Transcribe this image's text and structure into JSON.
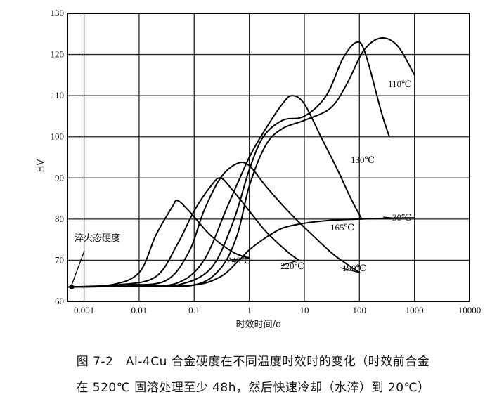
{
  "chart_data": {
    "type": "line",
    "title": "",
    "xlabel": "时效时间/d",
    "ylabel": "HV",
    "xscale": "log",
    "xlim": [
      0.0005,
      10000
    ],
    "ylim": [
      60,
      130
    ],
    "grid": true,
    "x_ticks": [
      {
        "value": 0.001,
        "label": "0.001"
      },
      {
        "value": 0.01,
        "label": "0.01"
      },
      {
        "value": 0.1,
        "label": "0.1"
      },
      {
        "value": 1,
        "label": "1"
      },
      {
        "value": 10,
        "label": "10"
      },
      {
        "value": 100,
        "label": "100"
      },
      {
        "value": 1000,
        "label": "1000"
      },
      {
        "value": 10000,
        "label": "10000"
      }
    ],
    "y_ticks": [
      {
        "value": 60,
        "label": "60"
      },
      {
        "value": 70,
        "label": "70"
      },
      {
        "value": 80,
        "label": "80"
      },
      {
        "value": 90,
        "label": "90"
      },
      {
        "value": 100,
        "label": "100"
      },
      {
        "value": 110,
        "label": "110"
      },
      {
        "value": 120,
        "label": "120"
      },
      {
        "value": 130,
        "label": "130"
      }
    ],
    "quench_point": {
      "x": 0.0005,
      "y": 63.5,
      "label": "淬火态硬度"
    },
    "series": [
      {
        "name": "30℃",
        "points": [
          [
            0.0005,
            63.5
          ],
          [
            0.01,
            63.7
          ],
          [
            0.1,
            64
          ],
          [
            0.3,
            66
          ],
          [
            0.6,
            69.5
          ],
          [
            1,
            72.5
          ],
          [
            2,
            75.5
          ],
          [
            4,
            77.8
          ],
          [
            10,
            79
          ],
          [
            30,
            79.7
          ],
          [
            100,
            80
          ],
          [
            300,
            80.2
          ],
          [
            1000,
            80.3
          ]
        ]
      },
      {
        "name": "110℃",
        "points": [
          [
            0.0005,
            63.5
          ],
          [
            0.01,
            63.7
          ],
          [
            0.1,
            64
          ],
          [
            0.3,
            68
          ],
          [
            0.6,
            76
          ],
          [
            1,
            88
          ],
          [
            2,
            98
          ],
          [
            4,
            102
          ],
          [
            10,
            104
          ],
          [
            30,
            107
          ],
          [
            60,
            113
          ],
          [
            120,
            121
          ],
          [
            250,
            124
          ],
          [
            500,
            122
          ],
          [
            1000,
            115
          ]
        ]
      },
      {
        "name": "130℃",
        "points": [
          [
            0.0005,
            63.5
          ],
          [
            0.01,
            63.7
          ],
          [
            0.05,
            64
          ],
          [
            0.2,
            68
          ],
          [
            0.5,
            79
          ],
          [
            1,
            92
          ],
          [
            1.8,
            100
          ],
          [
            4,
            104
          ],
          [
            10,
            105
          ],
          [
            25,
            110
          ],
          [
            50,
            119
          ],
          [
            90,
            123
          ],
          [
            130,
            120
          ],
          [
            250,
            106
          ],
          [
            350,
            100
          ]
        ]
      },
      {
        "name": "165℃",
        "points": [
          [
            0.0005,
            63.5
          ],
          [
            0.01,
            63.8
          ],
          [
            0.05,
            64.5
          ],
          [
            0.15,
            70
          ],
          [
            0.4,
            83
          ],
          [
            1,
            95
          ],
          [
            2,
            102
          ],
          [
            4,
            108
          ],
          [
            6,
            110
          ],
          [
            10,
            108
          ],
          [
            20,
            100
          ],
          [
            40,
            92
          ],
          [
            70,
            85
          ],
          [
            110,
            80
          ]
        ]
      },
      {
        "name": "190℃",
        "points": [
          [
            0.0005,
            63.5
          ],
          [
            0.005,
            64
          ],
          [
            0.03,
            65
          ],
          [
            0.08,
            72
          ],
          [
            0.15,
            82
          ],
          [
            0.3,
            90
          ],
          [
            0.6,
            93.5
          ],
          [
            1,
            93
          ],
          [
            2,
            88
          ],
          [
            5,
            82
          ],
          [
            10,
            78
          ],
          [
            30,
            72
          ],
          [
            60,
            69
          ],
          [
            100,
            67
          ]
        ]
      },
      {
        "name": "220℃",
        "points": [
          [
            0.0005,
            63.5
          ],
          [
            0.004,
            64
          ],
          [
            0.02,
            66
          ],
          [
            0.05,
            74
          ],
          [
            0.1,
            82
          ],
          [
            0.2,
            88
          ],
          [
            0.3,
            90
          ],
          [
            0.5,
            87
          ],
          [
            1,
            82
          ],
          [
            2,
            77
          ],
          [
            5,
            72
          ],
          [
            8,
            70
          ]
        ]
      },
      {
        "name": "240℃",
        "points": [
          [
            0.0005,
            63.5
          ],
          [
            0.003,
            64
          ],
          [
            0.01,
            67
          ],
          [
            0.02,
            76
          ],
          [
            0.04,
            83
          ],
          [
            0.05,
            84.5
          ],
          [
            0.08,
            82
          ],
          [
            0.2,
            76
          ],
          [
            0.5,
            72
          ],
          [
            1,
            70.5
          ]
        ]
      }
    ],
    "annotations": [
      {
        "text": "110℃",
        "series": "110℃"
      },
      {
        "text": "130℃",
        "series": "130℃"
      },
      {
        "text": "30℃",
        "series": "30℃"
      },
      {
        "text": "165℃",
        "series": "165℃"
      },
      {
        "text": "190℃",
        "series": "190℃"
      },
      {
        "text": "220℃",
        "series": "220℃"
      },
      {
        "text": "240℃",
        "series": "240℃"
      }
    ]
  },
  "caption": {
    "line1": "图 7-2　Al-4Cu 合金硬度在不同温度时效时的变化（时效前合金",
    "line2": "在 520℃ 固溶处理至少 48h，然后快速冷却（水淬）到 20℃）"
  }
}
